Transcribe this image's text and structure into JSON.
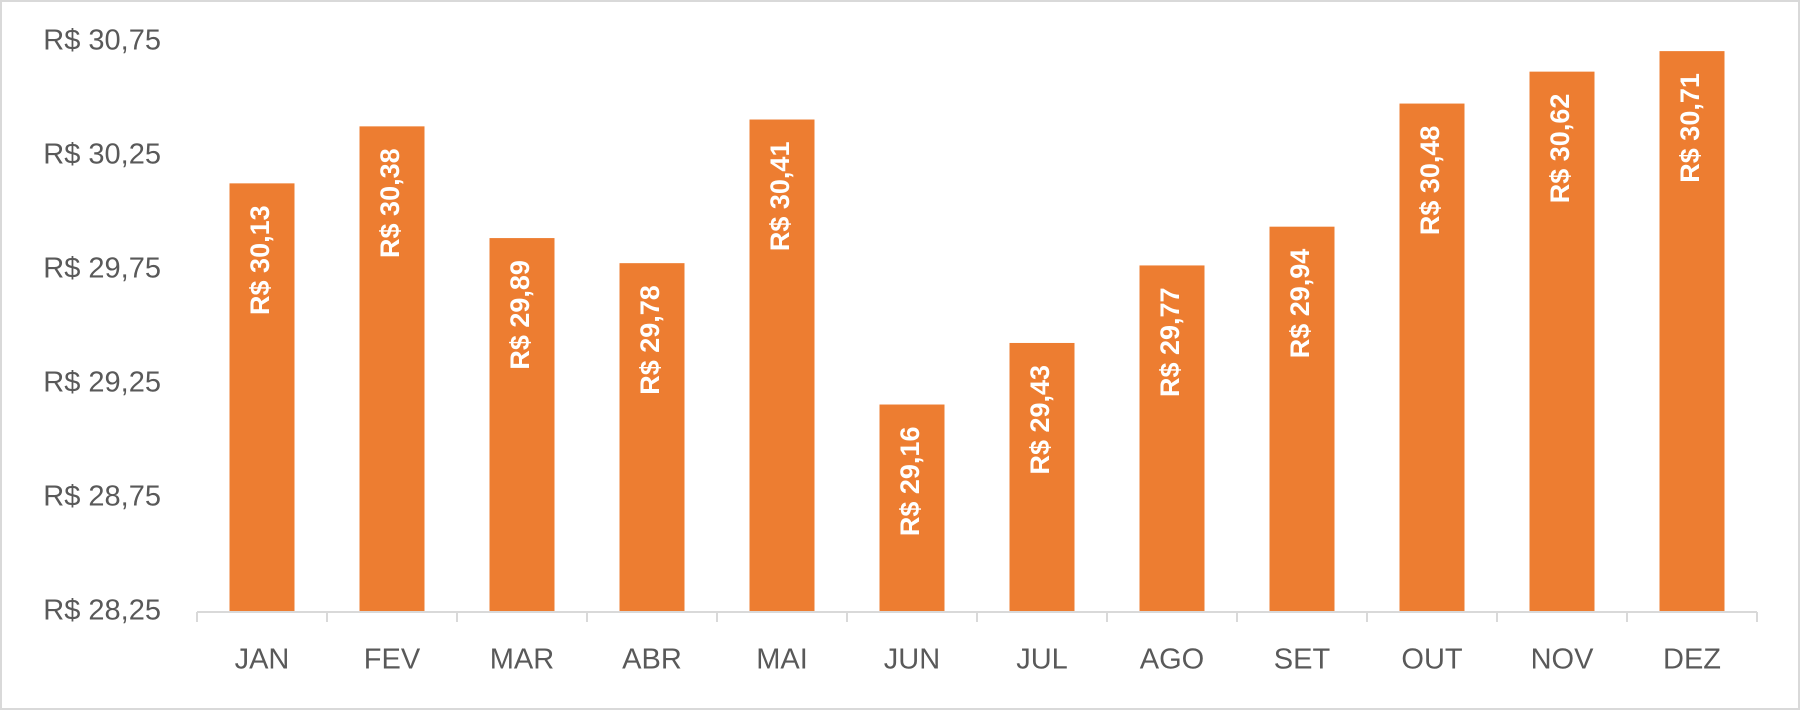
{
  "chart_data": {
    "type": "bar",
    "categories": [
      "JAN",
      "FEV",
      "MAR",
      "ABR",
      "MAI",
      "JUN",
      "JUL",
      "AGO",
      "SET",
      "OUT",
      "NOV",
      "DEZ"
    ],
    "values": [
      30.13,
      30.38,
      29.89,
      29.78,
      30.41,
      29.16,
      29.43,
      29.77,
      29.94,
      30.48,
      30.62,
      30.71
    ],
    "value_labels": [
      "R$ 30,13",
      "R$ 30,38",
      "R$ 29,89",
      "R$ 29,78",
      "R$ 30,41",
      "R$ 29,16",
      "R$ 29,43",
      "R$ 29,77",
      "R$ 29,94",
      "R$ 30,48",
      "R$ 30,62",
      "R$ 30,71"
    ],
    "color": "#ed7d31",
    "ylim": [
      28.25,
      30.75
    ],
    "yticks": [
      {
        "value": 28.25,
        "label": "R$ 28,25"
      },
      {
        "value": 28.75,
        "label": "R$ 28,75"
      },
      {
        "value": 29.25,
        "label": "R$ 29,25"
      },
      {
        "value": 29.75,
        "label": "R$ 29,75"
      },
      {
        "value": 30.25,
        "label": "R$ 30,25"
      },
      {
        "value": 30.75,
        "label": "R$ 30,75"
      }
    ],
    "grid": false
  }
}
